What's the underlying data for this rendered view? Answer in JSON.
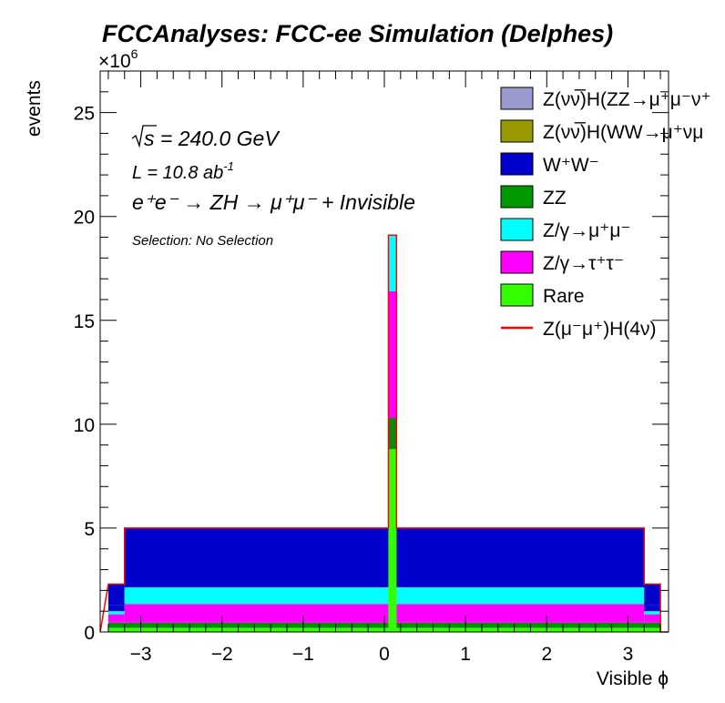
{
  "chart_data": {
    "type": "bar",
    "title": "FCCAnalyses: FCC-ee Simulation (Delphes)",
    "xlabel": "Visible ϕ",
    "ylabel": "events",
    "exponent_label": "×10",
    "exponent_power": "6",
    "xlim": [
      -3.5,
      3.5
    ],
    "ylim": [
      0,
      27
    ],
    "x_ticks": [
      -3,
      -2,
      -1,
      0,
      1,
      2,
      3
    ],
    "x_tick_labels": [
      "−3",
      "−2",
      "−1",
      "0",
      "1",
      "2",
      "3"
    ],
    "y_ticks": [
      0,
      5,
      10,
      15,
      20,
      25
    ],
    "y_tick_labels": [
      "0",
      "5",
      "10",
      "15",
      "20",
      "25"
    ],
    "annotations": {
      "sqrt_s": "s = 240.0 GeV",
      "lumi_main": "L = 10.8 ab",
      "lumi_exp": "-1",
      "process": "e⁺e⁻ → ZH → μ⁺μ⁻ + Invisible",
      "selection": "Selection: No Selection"
    },
    "bins": [
      {
        "x0": -3.4,
        "x1": -3.2,
        "stack": [
          0.2,
          0.25,
          0.4,
          0.15,
          0.3,
          1.0
        ]
      },
      {
        "x0": -3.2,
        "x1": 0.05,
        "stack": [
          0.2,
          0.25,
          0.9,
          0.8,
          2.85
        ]
      },
      {
        "x0": 0.05,
        "x1": 0.15,
        "stack": [
          8.8,
          1.5,
          6.1,
          2.7
        ]
      },
      {
        "x0": 0.15,
        "x1": 3.2,
        "stack": [
          0.2,
          0.25,
          0.9,
          0.8,
          2.85
        ]
      },
      {
        "x0": 3.2,
        "x1": 3.4,
        "stack": [
          0.2,
          0.25,
          0.4,
          0.15,
          0.3,
          1.0
        ]
      }
    ],
    "stack_colors": [
      "#33ff00",
      "#0a8a0a",
      "#ff00ff",
      "#00ffff",
      "#0000cc",
      "#0000cc"
    ],
    "signal_line_color": "#ff0000",
    "legend_position": "top-right",
    "legend": [
      {
        "name": "Z(νν̅)H(ZZ→μ⁺μ⁻ν⁺",
        "color": "#9999cc",
        "kind": "box"
      },
      {
        "name": "Z(νν̅)H(WW→μ⁺νμ",
        "color": "#999900",
        "kind": "box"
      },
      {
        "name": "W⁺W⁻",
        "color": "#0000cc",
        "kind": "box"
      },
      {
        "name": "ZZ",
        "color": "#009900",
        "kind": "box"
      },
      {
        "name": "Z/γ→μ⁺μ⁻",
        "color": "#00ffff",
        "kind": "box"
      },
      {
        "name": "Z/γ→τ⁺τ⁻",
        "color": "#ff00ff",
        "kind": "box"
      },
      {
        "name": "Rare",
        "color": "#33ff00",
        "kind": "box"
      },
      {
        "name": "Z(μ⁻μ⁺)H(4ν)",
        "color": "#ff0000",
        "kind": "line"
      }
    ]
  }
}
